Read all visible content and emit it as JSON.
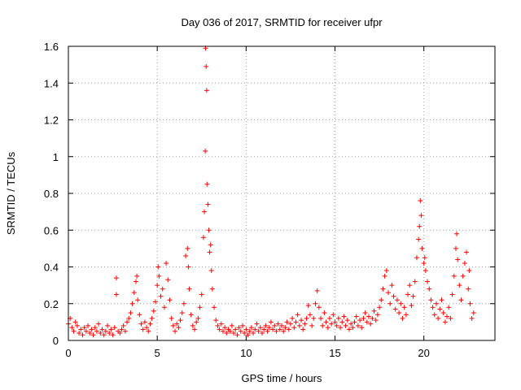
{
  "chart_data": {
    "type": "scatter",
    "title": "Day 036 of 2017, SRMTID for receiver ufpr",
    "xlabel": "GPS time / hours",
    "ylabel": "SRMTID / TECUs",
    "xlim": [
      0,
      24
    ],
    "ylim": [
      0,
      1.6
    ],
    "xticks": [
      0,
      5,
      10,
      15,
      20
    ],
    "xtick_labels": [
      "0",
      "5",
      "10",
      "15",
      "20"
    ],
    "yticks": [
      0,
      0.2,
      0.4,
      0.6,
      0.8,
      1,
      1.2,
      1.4,
      1.6
    ],
    "ytick_labels": [
      "0",
      "0.2",
      "0.4",
      "0.6",
      "0.8",
      "1",
      "1.2",
      "1.4",
      "1.6"
    ],
    "grid": true,
    "marker": "+",
    "color": "#ff0000",
    "series": [
      {
        "name": "SRMTID",
        "points": [
          [
            0.0,
            0.09
          ],
          [
            0.1,
            0.12
          ],
          [
            0.2,
            0.07
          ],
          [
            0.3,
            0.05
          ],
          [
            0.4,
            0.1
          ],
          [
            0.5,
            0.08
          ],
          [
            0.6,
            0.04
          ],
          [
            0.7,
            0.06
          ],
          [
            0.8,
            0.03
          ],
          [
            0.9,
            0.07
          ],
          [
            1.0,
            0.05
          ],
          [
            1.1,
            0.08
          ],
          [
            1.2,
            0.04
          ],
          [
            1.3,
            0.06
          ],
          [
            1.4,
            0.03
          ],
          [
            1.5,
            0.07
          ],
          [
            1.6,
            0.05
          ],
          [
            1.7,
            0.09
          ],
          [
            1.8,
            0.04
          ],
          [
            1.9,
            0.06
          ],
          [
            2.0,
            0.03
          ],
          [
            2.1,
            0.05
          ],
          [
            2.2,
            0.08
          ],
          [
            2.3,
            0.04
          ],
          [
            2.4,
            0.06
          ],
          [
            2.5,
            0.03
          ],
          [
            2.6,
            0.07
          ],
          [
            2.7,
            0.34
          ],
          [
            2.7,
            0.25
          ],
          [
            2.8,
            0.05
          ],
          [
            2.9,
            0.04
          ],
          [
            3.0,
            0.06
          ],
          [
            3.1,
            0.08
          ],
          [
            3.2,
            0.05
          ],
          [
            3.3,
            0.1
          ],
          [
            3.4,
            0.12
          ],
          [
            3.5,
            0.15
          ],
          [
            3.6,
            0.2
          ],
          [
            3.7,
            0.26
          ],
          [
            3.8,
            0.32
          ],
          [
            3.85,
            0.35
          ],
          [
            3.9,
            0.22
          ],
          [
            4.0,
            0.14
          ],
          [
            4.1,
            0.09
          ],
          [
            4.2,
            0.06
          ],
          [
            4.3,
            0.1
          ],
          [
            4.4,
            0.07
          ],
          [
            4.5,
            0.05
          ],
          [
            4.6,
            0.09
          ],
          [
            4.7,
            0.12
          ],
          [
            4.8,
            0.16
          ],
          [
            4.9,
            0.21
          ],
          [
            5.0,
            0.3
          ],
          [
            5.05,
            0.4
          ],
          [
            5.1,
            0.35
          ],
          [
            5.2,
            0.24
          ],
          [
            5.3,
            0.28
          ],
          [
            5.4,
            0.18
          ],
          [
            5.5,
            0.42
          ],
          [
            5.6,
            0.33
          ],
          [
            5.7,
            0.22
          ],
          [
            5.8,
            0.12
          ],
          [
            5.9,
            0.08
          ],
          [
            6.0,
            0.05
          ],
          [
            6.1,
            0.09
          ],
          [
            6.2,
            0.07
          ],
          [
            6.3,
            0.11
          ],
          [
            6.4,
            0.15
          ],
          [
            6.5,
            0.2
          ],
          [
            6.6,
            0.46
          ],
          [
            6.7,
            0.5
          ],
          [
            6.75,
            0.4
          ],
          [
            6.8,
            0.28
          ],
          [
            6.9,
            0.14
          ],
          [
            7.0,
            0.08
          ],
          [
            7.1,
            0.06
          ],
          [
            7.2,
            0.1
          ],
          [
            7.3,
            0.12
          ],
          [
            7.4,
            0.18
          ],
          [
            7.5,
            0.25
          ],
          [
            7.6,
            0.56
          ],
          [
            7.65,
            0.7
          ],
          [
            7.7,
            1.03
          ],
          [
            7.72,
            1.59
          ],
          [
            7.75,
            1.49
          ],
          [
            7.78,
            1.36
          ],
          [
            7.8,
            0.85
          ],
          [
            7.85,
            0.74
          ],
          [
            7.9,
            0.6
          ],
          [
            7.95,
            0.48
          ],
          [
            8.0,
            0.52
          ],
          [
            8.05,
            0.38
          ],
          [
            8.1,
            0.28
          ],
          [
            8.2,
            0.18
          ],
          [
            8.3,
            0.11
          ],
          [
            8.4,
            0.08
          ],
          [
            8.5,
            0.06
          ],
          [
            8.6,
            0.09
          ],
          [
            8.7,
            0.05
          ],
          [
            8.8,
            0.07
          ],
          [
            8.9,
            0.04
          ],
          [
            9.0,
            0.06
          ],
          [
            9.1,
            0.05
          ],
          [
            9.2,
            0.08
          ],
          [
            9.3,
            0.04
          ],
          [
            9.4,
            0.06
          ],
          [
            9.5,
            0.03
          ],
          [
            9.6,
            0.07
          ],
          [
            9.7,
            0.05
          ],
          [
            9.8,
            0.08
          ],
          [
            9.9,
            0.04
          ],
          [
            10.0,
            0.06
          ],
          [
            10.1,
            0.03
          ],
          [
            10.2,
            0.05
          ],
          [
            10.3,
            0.07
          ],
          [
            10.4,
            0.04
          ],
          [
            10.5,
            0.06
          ],
          [
            10.6,
            0.09
          ],
          [
            10.7,
            0.05
          ],
          [
            10.8,
            0.07
          ],
          [
            10.9,
            0.04
          ],
          [
            11.0,
            0.06
          ],
          [
            11.1,
            0.08
          ],
          [
            11.2,
            0.05
          ],
          [
            11.3,
            0.07
          ],
          [
            11.4,
            0.1
          ],
          [
            11.5,
            0.06
          ],
          [
            11.6,
            0.08
          ],
          [
            11.7,
            0.05
          ],
          [
            11.8,
            0.09
          ],
          [
            11.9,
            0.06
          ],
          [
            12.0,
            0.08
          ],
          [
            12.1,
            0.05
          ],
          [
            12.2,
            0.07
          ],
          [
            12.3,
            0.1
          ],
          [
            12.4,
            0.06
          ],
          [
            12.5,
            0.09
          ],
          [
            12.6,
            0.12
          ],
          [
            12.7,
            0.07
          ],
          [
            12.8,
            0.1
          ],
          [
            12.9,
            0.14
          ],
          [
            13.0,
            0.08
          ],
          [
            13.1,
            0.11
          ],
          [
            13.2,
            0.06
          ],
          [
            13.3,
            0.09
          ],
          [
            13.4,
            0.12
          ],
          [
            13.5,
            0.19
          ],
          [
            13.6,
            0.14
          ],
          [
            13.7,
            0.08
          ],
          [
            13.8,
            0.12
          ],
          [
            13.9,
            0.2
          ],
          [
            14.0,
            0.27
          ],
          [
            14.1,
            0.18
          ],
          [
            14.2,
            0.12
          ],
          [
            14.3,
            0.08
          ],
          [
            14.4,
            0.15
          ],
          [
            14.5,
            0.1
          ],
          [
            14.6,
            0.07
          ],
          [
            14.7,
            0.12
          ],
          [
            14.8,
            0.09
          ],
          [
            14.9,
            0.14
          ],
          [
            15.0,
            0.1
          ],
          [
            15.1,
            0.08
          ],
          [
            15.2,
            0.12
          ],
          [
            15.3,
            0.07
          ],
          [
            15.4,
            0.1
          ],
          [
            15.5,
            0.13
          ],
          [
            15.6,
            0.08
          ],
          [
            15.7,
            0.11
          ],
          [
            15.8,
            0.06
          ],
          [
            15.9,
            0.09
          ],
          [
            16.0,
            0.07
          ],
          [
            16.1,
            0.1
          ],
          [
            16.2,
            0.13
          ],
          [
            16.3,
            0.08
          ],
          [
            16.4,
            0.11
          ],
          [
            16.5,
            0.07
          ],
          [
            16.6,
            0.12
          ],
          [
            16.7,
            0.15
          ],
          [
            16.8,
            0.1
          ],
          [
            16.9,
            0.13
          ],
          [
            17.0,
            0.09
          ],
          [
            17.1,
            0.12
          ],
          [
            17.2,
            0.16
          ],
          [
            17.3,
            0.11
          ],
          [
            17.4,
            0.14
          ],
          [
            17.5,
            0.18
          ],
          [
            17.6,
            0.22
          ],
          [
            17.7,
            0.28
          ],
          [
            17.8,
            0.35
          ],
          [
            17.9,
            0.38
          ],
          [
            18.0,
            0.26
          ],
          [
            18.1,
            0.2
          ],
          [
            18.2,
            0.3
          ],
          [
            18.3,
            0.24
          ],
          [
            18.4,
            0.17
          ],
          [
            18.5,
            0.22
          ],
          [
            18.6,
            0.15
          ],
          [
            18.7,
            0.2
          ],
          [
            18.8,
            0.12
          ],
          [
            18.9,
            0.18
          ],
          [
            19.0,
            0.14
          ],
          [
            19.1,
            0.25
          ],
          [
            19.2,
            0.3
          ],
          [
            19.3,
            0.19
          ],
          [
            19.4,
            0.24
          ],
          [
            19.5,
            0.32
          ],
          [
            19.6,
            0.45
          ],
          [
            19.7,
            0.55
          ],
          [
            19.75,
            0.62
          ],
          [
            19.8,
            0.76
          ],
          [
            19.85,
            0.68
          ],
          [
            19.9,
            0.5
          ],
          [
            20.0,
            0.42
          ],
          [
            20.05,
            0.45
          ],
          [
            20.1,
            0.38
          ],
          [
            20.2,
            0.32
          ],
          [
            20.3,
            0.28
          ],
          [
            20.4,
            0.22
          ],
          [
            20.5,
            0.18
          ],
          [
            20.6,
            0.14
          ],
          [
            20.7,
            0.2
          ],
          [
            20.8,
            0.12
          ],
          [
            20.9,
            0.17
          ],
          [
            21.0,
            0.22
          ],
          [
            21.1,
            0.15
          ],
          [
            21.2,
            0.1
          ],
          [
            21.3,
            0.13
          ],
          [
            21.4,
            0.18
          ],
          [
            21.5,
            0.12
          ],
          [
            21.6,
            0.25
          ],
          [
            21.7,
            0.35
          ],
          [
            21.8,
            0.5
          ],
          [
            21.85,
            0.58
          ],
          [
            21.9,
            0.44
          ],
          [
            22.0,
            0.3
          ],
          [
            22.1,
            0.22
          ],
          [
            22.2,
            0.35
          ],
          [
            22.3,
            0.42
          ],
          [
            22.4,
            0.48
          ],
          [
            22.5,
            0.28
          ],
          [
            22.55,
            0.38
          ],
          [
            22.6,
            0.2
          ],
          [
            22.7,
            0.12
          ],
          [
            22.8,
            0.15
          ]
        ]
      }
    ]
  }
}
